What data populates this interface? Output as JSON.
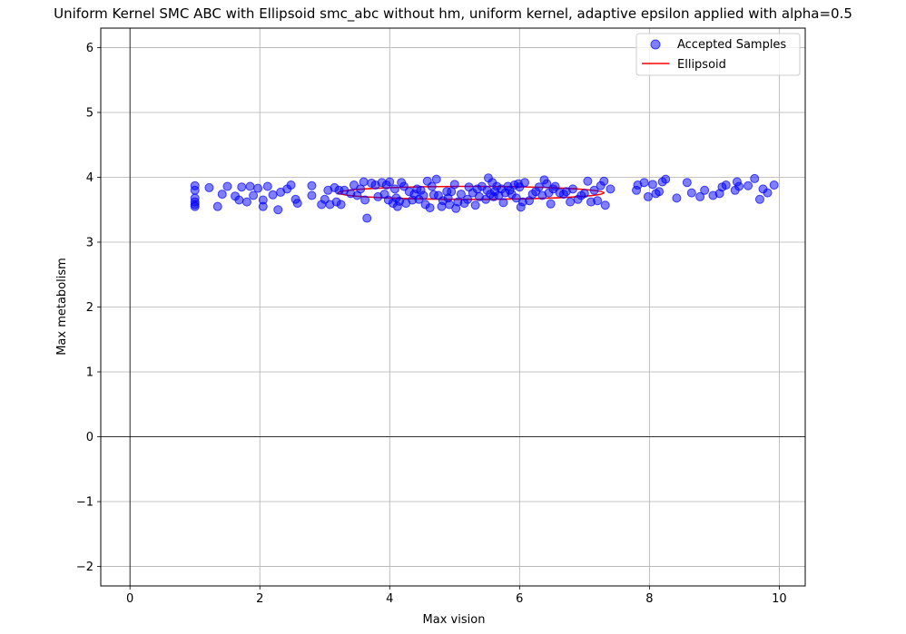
{
  "chart_data": {
    "type": "scatter",
    "title": "Uniform Kernel SMC ABC with Ellipsoid smc_abc without hm, uniform kernel, adaptive epsilon applied with alpha=0.5",
    "xlabel": "Max vision",
    "ylabel": "Max metabolism",
    "xlim": [
      -0.45,
      10.4
    ],
    "ylim": [
      -2.3,
      6.3
    ],
    "xticks": [
      0,
      2,
      4,
      6,
      8,
      10
    ],
    "yticks": [
      -2,
      -1,
      0,
      1,
      2,
      3,
      4,
      5,
      6
    ],
    "xtick_labels": [
      "0",
      "2",
      "4",
      "6",
      "8",
      "10"
    ],
    "ytick_labels": [
      "−2",
      "−1",
      "0",
      "1",
      "2",
      "3",
      "4",
      "5",
      "6"
    ],
    "grid": true,
    "zero_lines": true,
    "legend": {
      "position": "top-right",
      "entries": [
        {
          "label": "Accepted Samples",
          "kind": "marker",
          "color": "#0000ff"
        },
        {
          "label": "Ellipsoid",
          "kind": "line",
          "color": "#ff0000"
        }
      ]
    },
    "ellipse": {
      "center": [
        5.25,
        3.76
      ],
      "rx": 2.05,
      "ry": 0.1,
      "color": "#ff0000"
    },
    "series": [
      {
        "name": "Accepted Samples",
        "color": "#0000ff",
        "points": [
          [
            1.0,
            3.87
          ],
          [
            1.0,
            3.8
          ],
          [
            1.0,
            3.68
          ],
          [
            1.0,
            3.62
          ],
          [
            1.0,
            3.58
          ],
          [
            1.0,
            3.55
          ],
          [
            1.22,
            3.84
          ],
          [
            1.35,
            3.55
          ],
          [
            1.42,
            3.74
          ],
          [
            1.5,
            3.86
          ],
          [
            1.62,
            3.71
          ],
          [
            1.68,
            3.65
          ],
          [
            1.72,
            3.85
          ],
          [
            1.8,
            3.62
          ],
          [
            1.85,
            3.86
          ],
          [
            1.9,
            3.72
          ],
          [
            1.97,
            3.83
          ],
          [
            2.05,
            3.55
          ],
          [
            2.05,
            3.65
          ],
          [
            2.12,
            3.86
          ],
          [
            2.2,
            3.73
          ],
          [
            2.28,
            3.5
          ],
          [
            2.32,
            3.77
          ],
          [
            2.42,
            3.82
          ],
          [
            2.48,
            3.88
          ],
          [
            2.55,
            3.66
          ],
          [
            2.58,
            3.6
          ],
          [
            2.8,
            3.72
          ],
          [
            2.8,
            3.87
          ],
          [
            2.95,
            3.58
          ],
          [
            3.0,
            3.66
          ],
          [
            3.05,
            3.8
          ],
          [
            3.08,
            3.58
          ],
          [
            3.15,
            3.84
          ],
          [
            3.18,
            3.62
          ],
          [
            3.22,
            3.8
          ],
          [
            3.25,
            3.58
          ],
          [
            3.3,
            3.8
          ],
          [
            3.4,
            3.75
          ],
          [
            3.45,
            3.88
          ],
          [
            3.5,
            3.72
          ],
          [
            3.55,
            3.82
          ],
          [
            3.6,
            3.93
          ],
          [
            3.62,
            3.65
          ],
          [
            3.65,
            3.37
          ],
          [
            3.72,
            3.91
          ],
          [
            3.78,
            3.88
          ],
          [
            3.82,
            3.7
          ],
          [
            3.88,
            3.92
          ],
          [
            3.92,
            3.74
          ],
          [
            3.95,
            3.88
          ],
          [
            3.98,
            3.65
          ],
          [
            4.0,
            3.93
          ],
          [
            4.05,
            3.6
          ],
          [
            4.08,
            3.82
          ],
          [
            4.1,
            3.68
          ],
          [
            4.12,
            3.55
          ],
          [
            4.15,
            3.63
          ],
          [
            4.18,
            3.92
          ],
          [
            4.22,
            3.86
          ],
          [
            4.25,
            3.6
          ],
          [
            4.3,
            3.78
          ],
          [
            4.35,
            3.65
          ],
          [
            4.38,
            3.74
          ],
          [
            4.42,
            3.82
          ],
          [
            4.45,
            3.66
          ],
          [
            4.48,
            3.8
          ],
          [
            4.52,
            3.72
          ],
          [
            4.55,
            3.58
          ],
          [
            4.58,
            3.94
          ],
          [
            4.62,
            3.53
          ],
          [
            4.65,
            3.86
          ],
          [
            4.68,
            3.73
          ],
          [
            4.72,
            3.97
          ],
          [
            4.75,
            3.72
          ],
          [
            4.8,
            3.55
          ],
          [
            4.82,
            3.64
          ],
          [
            4.88,
            3.78
          ],
          [
            4.9,
            3.68
          ],
          [
            4.92,
            3.58
          ],
          [
            4.95,
            3.78
          ],
          [
            5.0,
            3.89
          ],
          [
            5.02,
            3.52
          ],
          [
            5.05,
            3.62
          ],
          [
            5.1,
            3.74
          ],
          [
            5.15,
            3.6
          ],
          [
            5.2,
            3.66
          ],
          [
            5.22,
            3.85
          ],
          [
            5.28,
            3.76
          ],
          [
            5.32,
            3.57
          ],
          [
            5.35,
            3.82
          ],
          [
            5.38,
            3.7
          ],
          [
            5.42,
            3.86
          ],
          [
            5.48,
            3.66
          ],
          [
            5.5,
            3.8
          ],
          [
            5.52,
            3.99
          ],
          [
            5.55,
            3.74
          ],
          [
            5.58,
            3.92
          ],
          [
            5.6,
            3.7
          ],
          [
            5.62,
            3.78
          ],
          [
            5.65,
            3.86
          ],
          [
            5.68,
            3.72
          ],
          [
            5.72,
            3.82
          ],
          [
            5.75,
            3.61
          ],
          [
            5.78,
            3.76
          ],
          [
            5.82,
            3.86
          ],
          [
            5.85,
            3.8
          ],
          [
            5.88,
            3.74
          ],
          [
            5.92,
            3.88
          ],
          [
            5.95,
            3.68
          ],
          [
            5.98,
            3.9
          ],
          [
            6.0,
            3.85
          ],
          [
            6.02,
            3.54
          ],
          [
            6.05,
            3.62
          ],
          [
            6.08,
            3.92
          ],
          [
            6.15,
            3.64
          ],
          [
            6.2,
            3.74
          ],
          [
            6.25,
            3.78
          ],
          [
            6.3,
            3.85
          ],
          [
            6.35,
            3.72
          ],
          [
            6.38,
            3.96
          ],
          [
            6.42,
            3.9
          ],
          [
            6.45,
            3.76
          ],
          [
            6.48,
            3.59
          ],
          [
            6.52,
            3.82
          ],
          [
            6.55,
            3.86
          ],
          [
            6.62,
            3.76
          ],
          [
            6.68,
            3.74
          ],
          [
            6.72,
            3.78
          ],
          [
            6.78,
            3.62
          ],
          [
            6.82,
            3.82
          ],
          [
            6.9,
            3.66
          ],
          [
            6.95,
            3.72
          ],
          [
            7.0,
            3.75
          ],
          [
            7.05,
            3.94
          ],
          [
            7.1,
            3.62
          ],
          [
            7.15,
            3.8
          ],
          [
            7.2,
            3.64
          ],
          [
            7.25,
            3.87
          ],
          [
            7.3,
            3.94
          ],
          [
            7.32,
            3.57
          ],
          [
            7.4,
            3.82
          ],
          [
            7.8,
            3.8
          ],
          [
            7.82,
            3.88
          ],
          [
            7.92,
            3.92
          ],
          [
            7.98,
            3.7
          ],
          [
            8.05,
            3.89
          ],
          [
            8.1,
            3.75
          ],
          [
            8.15,
            3.78
          ],
          [
            8.2,
            3.93
          ],
          [
            8.25,
            3.97
          ],
          [
            8.42,
            3.68
          ],
          [
            8.58,
            3.92
          ],
          [
            8.65,
            3.76
          ],
          [
            8.78,
            3.7
          ],
          [
            8.85,
            3.8
          ],
          [
            8.98,
            3.72
          ],
          [
            9.08,
            3.75
          ],
          [
            9.12,
            3.85
          ],
          [
            9.18,
            3.88
          ],
          [
            9.32,
            3.8
          ],
          [
            9.35,
            3.93
          ],
          [
            9.38,
            3.86
          ],
          [
            9.52,
            3.87
          ],
          [
            9.62,
            3.98
          ],
          [
            9.7,
            3.66
          ],
          [
            9.75,
            3.82
          ],
          [
            9.82,
            3.76
          ],
          [
            9.92,
            3.88
          ]
        ]
      }
    ]
  }
}
